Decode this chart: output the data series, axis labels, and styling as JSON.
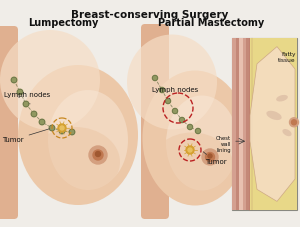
{
  "title": "Breast-conserving Surgery",
  "title_fontsize": 7.5,
  "title_fontweight": "bold",
  "bg_color": "#f0ede8",
  "label_lumpectomy": "Lumpectomy",
  "label_partial": "Partial Mastectomy",
  "label_lymph_nodes_left": "Lymph nodes",
  "label_lymph_nodes_right": "Lymph nodes",
  "label_tumor_left": "Tumor",
  "label_tumor_right": "Tumor",
  "label_fatty": "Fatty\ntissue",
  "label_chest": "Chest\nwall\nlining",
  "skin_base": "#e0b090",
  "skin_mid": "#d4a080",
  "skin_light": "#ecc8a8",
  "skin_lighter": "#f5ddc5",
  "skin_highlight": "#f8e8d8",
  "chest_wall_color": "#c08878",
  "nipple_color": "#c07850",
  "nipple_inner": "#a05830",
  "lymph_color": "#909860",
  "lymph_dark": "#606840",
  "tumor_color": "#d4a030",
  "tumor_center": "#e8c060",
  "circle_orange": "#c88820",
  "circle_red": "#bb2222",
  "fatty_color": "#e8d888",
  "fatty_light": "#f0e4a0",
  "chest_strip1": "#d4a090",
  "chest_strip2": "#c48878",
  "chest_strip3": "#e8c0b0",
  "box_bg": "#f2e8c8",
  "box_border": "#888880",
  "annotation_fontsize": 5.0,
  "subtitle_fontsize": 7.0,
  "line_color": "#333333"
}
